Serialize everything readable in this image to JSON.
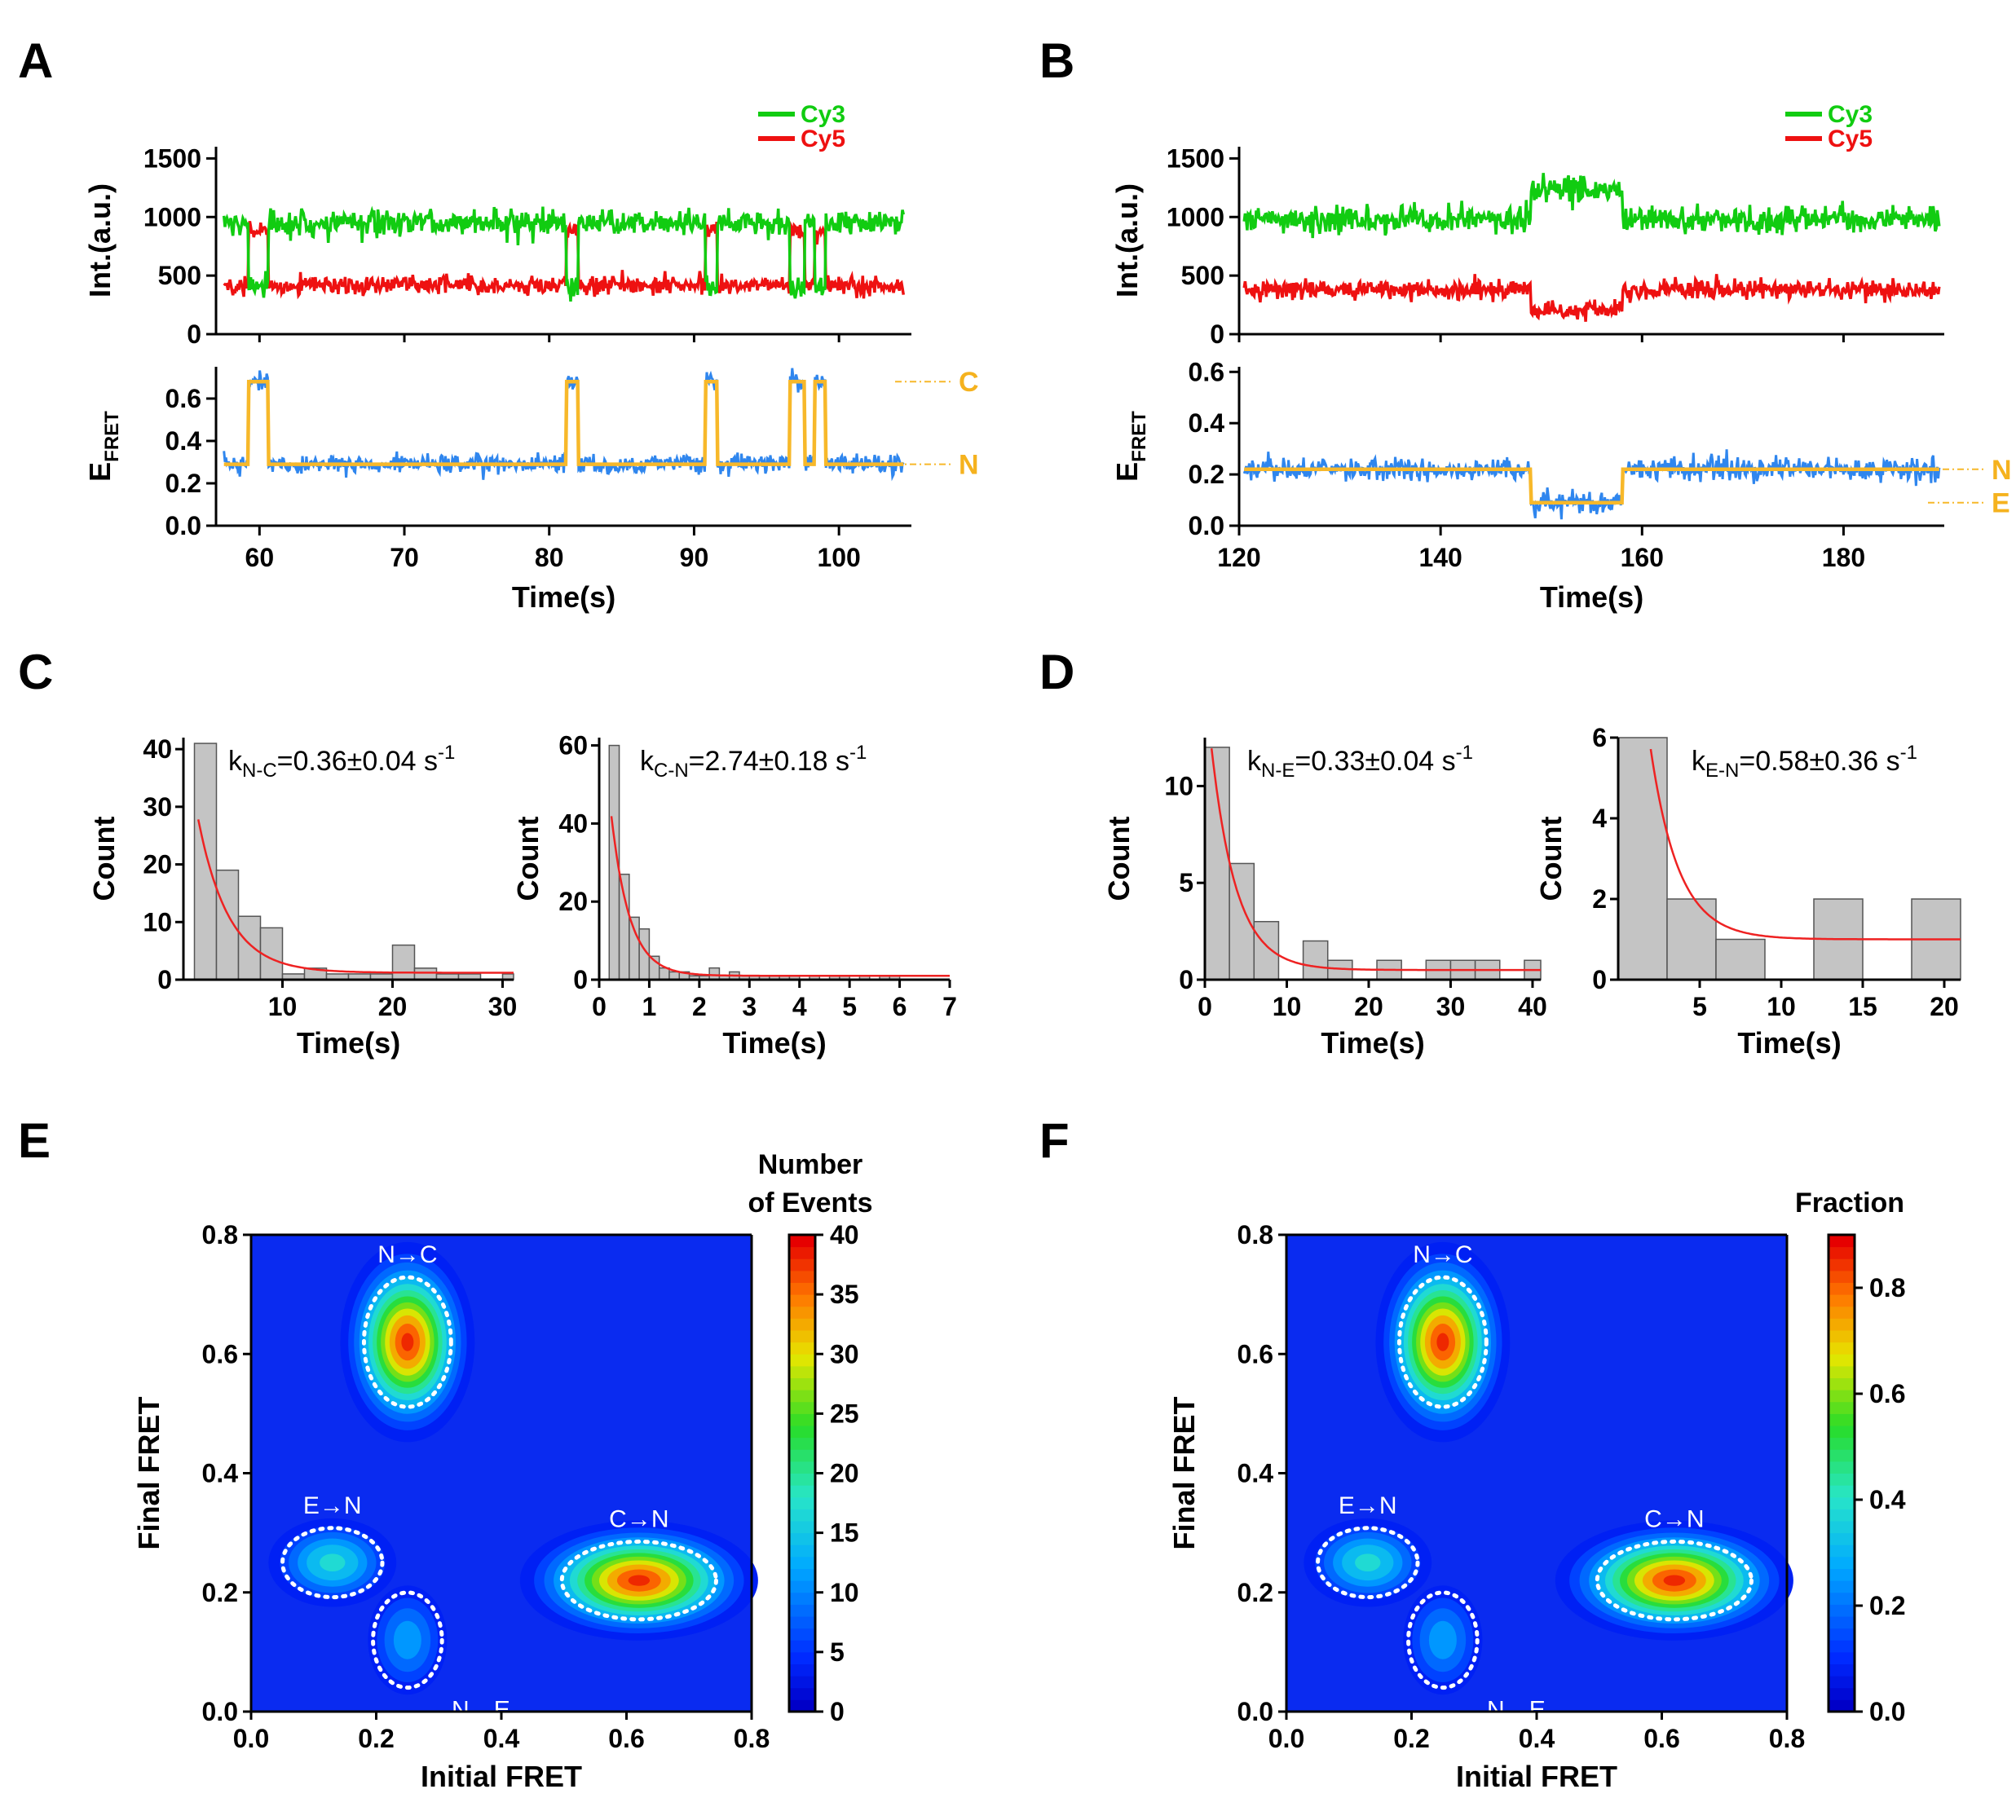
{
  "colors": {
    "cy3": "#11cc11",
    "cy5": "#ee1111",
    "fret_trace": "#2f86ee",
    "hmm_fit": "#f7b82a",
    "fit_curve": "#ee2222",
    "bar_fill": "#c4c4c4",
    "bar_stroke": "#555555",
    "map_bg": "#0a2bf0"
  },
  "chart_data": [
    {
      "panel": "A",
      "type": "line",
      "intensity": {
        "ylabel": "Int.(a.u.)",
        "ylim": [
          0,
          1600
        ],
        "yticks": [
          "0",
          "500",
          "1000",
          "1500"
        ],
        "legend": [
          "Cy3",
          "Cy5"
        ],
        "cy3_base": 950,
        "cy3_bound": 400,
        "cy5_base": 420,
        "cy5_bound": 880
      },
      "fret": {
        "ylabel": "E",
        "ylabel_sub": "FRET",
        "ylim": [
          0,
          0.75
        ],
        "yticks": [
          "0.0",
          "0.2",
          "0.4",
          "0.6"
        ],
        "levels": [
          {
            "state": "C",
            "value": 0.68
          },
          {
            "state": "N",
            "value": 0.29
          }
        ]
      },
      "xlim": [
        57,
        105
      ],
      "xticks": [
        "60",
        "70",
        "80",
        "90",
        "100"
      ],
      "xlabel": "Time(s)",
      "high_intervals": [
        [
          59.2,
          60.6
        ],
        [
          81.2,
          82.0
        ],
        [
          90.8,
          91.6
        ],
        [
          96.6,
          97.6
        ],
        [
          98.3,
          99.1
        ]
      ]
    },
    {
      "panel": "B",
      "type": "line",
      "intensity": {
        "ylabel": "Int.(a.u.)",
        "ylim": [
          0,
          1600
        ],
        "yticks": [
          "0",
          "500",
          "1000",
          "1500"
        ],
        "legend": [
          "Cy3",
          "Cy5"
        ],
        "cy3_base": 980,
        "cy3_bound": 1230,
        "cy5_base": 380,
        "cy5_bound": 200
      },
      "fret": {
        "ylabel": "E",
        "ylabel_sub": "FRET",
        "ylim": [
          0,
          0.62
        ],
        "yticks": [
          "0.0",
          "0.2",
          "0.4",
          "0.6"
        ],
        "levels": [
          {
            "state": "N",
            "value": 0.22
          },
          {
            "state": "E",
            "value": 0.09
          }
        ]
      },
      "xlim": [
        120,
        190
      ],
      "xticks": [
        "120",
        "140",
        "160",
        "180"
      ],
      "xlabel": "Time(s)",
      "low_intervals": [
        [
          149,
          158
        ]
      ]
    },
    {
      "panel": "C",
      "type": "bar",
      "title": "k",
      "title_sub": "N-C",
      "title_rest": "=0.36±0.04 s",
      "title_sup": "-1",
      "bin_start": 2,
      "bin_width": 2,
      "values": [
        41,
        19,
        11,
        9,
        1,
        2,
        1,
        1,
        1,
        6,
        2,
        1,
        1,
        0,
        1
      ],
      "fit": {
        "A": 62,
        "k": 0.36,
        "c": 1.2
      },
      "xlim": [
        1,
        31
      ],
      "ylim": [
        0,
        42
      ],
      "xticks": [
        "10",
        "20",
        "30"
      ],
      "xtick_vals": [
        10,
        20,
        30
      ],
      "yticks": [
        "0",
        "10",
        "20",
        "30",
        "40"
      ],
      "ytick_vals": [
        0,
        10,
        20,
        30,
        40
      ],
      "xlabel": "Time(s)",
      "ylabel": "Count"
    },
    {
      "panel": "C2",
      "type": "bar",
      "title": "k",
      "title_sub": "C-N",
      "title_rest": "=2.74±0.18 s",
      "title_sup": "-1",
      "bin_start": 0.2,
      "bin_width": 0.2,
      "values": [
        60,
        27,
        16,
        13,
        6,
        3,
        2,
        2,
        1,
        1,
        3,
        1,
        2,
        1,
        1,
        1,
        1,
        1,
        1,
        0,
        1,
        0,
        1,
        1,
        0,
        1,
        0,
        1,
        1,
        0
      ],
      "fit": {
        "A": 80,
        "k": 2.74,
        "c": 1.0
      },
      "xlim": [
        0,
        7
      ],
      "ylim": [
        0,
        62
      ],
      "xticks": [
        "0",
        "1",
        "2",
        "3",
        "4",
        "5",
        "6",
        "7"
      ],
      "xtick_vals": [
        0,
        1,
        2,
        3,
        4,
        5,
        6,
        7
      ],
      "yticks": [
        "0",
        "20",
        "40",
        "60"
      ],
      "ytick_vals": [
        0,
        20,
        40,
        60
      ],
      "xlabel": "Time(s)",
      "ylabel": "Count"
    },
    {
      "panel": "D",
      "type": "bar",
      "title": "k",
      "title_sub": "N-E",
      "title_rest": "=0.33±0.04 s",
      "title_sup": "-1",
      "bin_start": 0,
      "bin_width": 3,
      "values": [
        12,
        6,
        3,
        0,
        2,
        1,
        0,
        1,
        0,
        1,
        1,
        1,
        0,
        1
      ],
      "fit": {
        "A": 15,
        "k": 0.33,
        "c": 0.5
      },
      "xlim": [
        0,
        41
      ],
      "ylim": [
        0,
        12.5
      ],
      "xticks": [
        "0",
        "10",
        "20",
        "30",
        "40"
      ],
      "xtick_vals": [
        0,
        10,
        20,
        30,
        40
      ],
      "yticks": [
        "0",
        "5",
        "10"
      ],
      "ytick_vals": [
        0,
        5,
        10
      ],
      "xlabel": "Time(s)",
      "ylabel": "Count"
    },
    {
      "panel": "D2",
      "type": "bar",
      "title": "k",
      "title_sub": "E-N",
      "title_rest": "=0.58±0.36 s",
      "title_sup": "-1",
      "bin_start": 0,
      "bin_width": 3,
      "values": [
        6,
        2,
        1,
        0,
        2,
        0,
        2
      ],
      "fit": {
        "A": 15,
        "k": 0.58,
        "c": 1.0
      },
      "xlim": [
        0,
        21
      ],
      "ylim": [
        0,
        6
      ],
      "xticks": [
        "5",
        "10",
        "15",
        "20"
      ],
      "xtick_vals": [
        5,
        10,
        15,
        20
      ],
      "yticks": [
        "0",
        "2",
        "4",
        "6"
      ],
      "ytick_vals": [
        0,
        2,
        4,
        6
      ],
      "xlabel": "Time(s)",
      "ylabel": "Count"
    },
    {
      "panel": "E",
      "type": "heatmap",
      "xlabel": "Initial FRET",
      "ylabel": "Final FRET",
      "xlim": [
        0,
        0.8
      ],
      "ylim": [
        0,
        0.8
      ],
      "ticks": [
        "0.0",
        "0.2",
        "0.4",
        "0.6",
        "0.8"
      ],
      "colorbar": {
        "title_line1": "Number",
        "title_line2": "of Events",
        "min": 0,
        "max": 40,
        "ticks": [
          "0",
          "5",
          "10",
          "15",
          "20",
          "25",
          "30",
          "35",
          "40"
        ]
      },
      "clusters": [
        {
          "label": "N→C",
          "x": 0.25,
          "y": 0.62,
          "peak": 0.98,
          "sx": 0.048,
          "sy": 0.075
        },
        {
          "label": "C→N",
          "x": 0.62,
          "y": 0.22,
          "peak": 0.98,
          "sx": 0.085,
          "sy": 0.045
        },
        {
          "label": "E→N",
          "x": 0.13,
          "y": 0.25,
          "peak": 0.45,
          "sx": 0.055,
          "sy": 0.04
        },
        {
          "label": "N→E",
          "x": 0.25,
          "y": 0.12,
          "peak": 0.32,
          "sx": 0.038,
          "sy": 0.055
        }
      ]
    },
    {
      "panel": "F",
      "type": "heatmap",
      "xlabel": "Initial FRET",
      "ylabel": "Final FRET",
      "xlim": [
        0,
        0.8
      ],
      "ylim": [
        0,
        0.8
      ],
      "ticks": [
        "0.0",
        "0.2",
        "0.4",
        "0.6",
        "0.8"
      ],
      "colorbar": {
        "title_line1": "Fraction",
        "min": 0,
        "max": 0.9,
        "ticks": [
          "0.0",
          "0.2",
          "0.4",
          "0.6",
          "0.8"
        ]
      },
      "clusters": [
        {
          "label": "N→C",
          "x": 0.25,
          "y": 0.62,
          "peak": 0.98,
          "sx": 0.048,
          "sy": 0.075
        },
        {
          "label": "C→N",
          "x": 0.62,
          "y": 0.22,
          "peak": 0.98,
          "sx": 0.085,
          "sy": 0.045
        },
        {
          "label": "E→N",
          "x": 0.13,
          "y": 0.25,
          "peak": 0.45,
          "sx": 0.055,
          "sy": 0.04
        },
        {
          "label": "N→E",
          "x": 0.25,
          "y": 0.12,
          "peak": 0.32,
          "sx": 0.038,
          "sy": 0.055
        }
      ]
    }
  ],
  "panel_labels": [
    "A",
    "B",
    "C",
    "D",
    "E",
    "F"
  ]
}
